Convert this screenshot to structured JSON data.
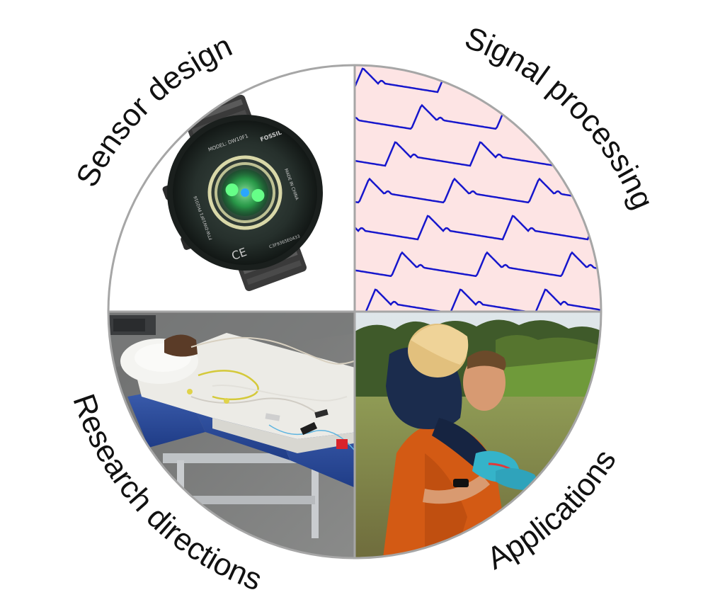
{
  "labels": {
    "top_left": "Sensor design",
    "top_right": "Signal processing",
    "bottom_left": "Research directions",
    "bottom_right": "Applications"
  },
  "watch_markings": {
    "model": "MODEL: DW10F1",
    "brand": "FOSSIL",
    "made_in": "MADE IN CHINA",
    "ce": "CE",
    "serial": "C3F9365E0433",
    "fcc_id": "FTW-DW10F1 PH2016"
  },
  "colors": {
    "circle_border": "#a6a6a6",
    "signal_background": "#fde4e4",
    "signal_line": "#1616cc",
    "led_green": "#33ff66"
  }
}
